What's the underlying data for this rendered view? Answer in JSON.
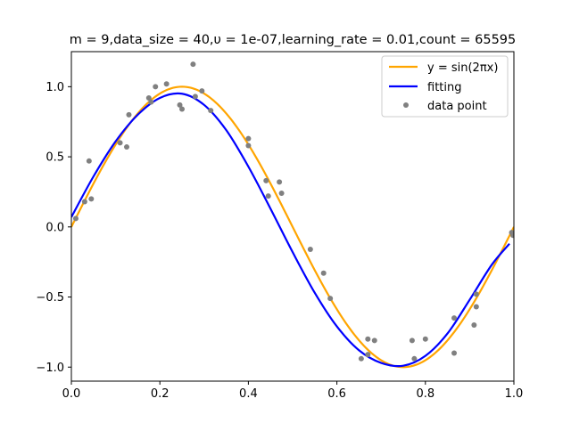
{
  "chart_data": {
    "type": "scatter",
    "title": "m = 9,data_size = 40,υ = 1e-07,learning_rate = 0.01,count = 65595",
    "xlabel": "",
    "ylabel": "",
    "xlim": [
      0.0,
      1.0
    ],
    "ylim": [
      -1.1,
      1.25
    ],
    "x_ticks": [
      0.0,
      0.2,
      0.4,
      0.6,
      0.8,
      1.0
    ],
    "x_tick_labels": [
      "0.0",
      "0.2",
      "0.4",
      "0.6",
      "0.8",
      "1.0"
    ],
    "y_ticks": [
      -1.0,
      -0.5,
      0.0,
      0.5,
      1.0
    ],
    "y_tick_labels": [
      "−1.0",
      "−0.5",
      "0.0",
      "0.5",
      "1.0"
    ],
    "grid": false,
    "legend_position": "upper right",
    "series": [
      {
        "name": "y = sin(2πx)",
        "kind": "line",
        "color": "#ffa500",
        "function": "sin(2*pi*x)",
        "x_range": [
          0.0,
          1.0
        ]
      },
      {
        "name": "fitting",
        "kind": "line",
        "color": "#0000ff",
        "points": [
          [
            0.0,
            0.07
          ],
          [
            0.05,
            0.36
          ],
          [
            0.1,
            0.61
          ],
          [
            0.15,
            0.8
          ],
          [
            0.2,
            0.92
          ],
          [
            0.25,
            0.95
          ],
          [
            0.3,
            0.87
          ],
          [
            0.35,
            0.69
          ],
          [
            0.4,
            0.43
          ],
          [
            0.45,
            0.13
          ],
          [
            0.5,
            -0.18
          ],
          [
            0.55,
            -0.47
          ],
          [
            0.6,
            -0.71
          ],
          [
            0.65,
            -0.88
          ],
          [
            0.7,
            -0.97
          ],
          [
            0.75,
            -0.99
          ],
          [
            0.8,
            -0.92
          ],
          [
            0.85,
            -0.76
          ],
          [
            0.9,
            -0.52
          ],
          [
            0.95,
            -0.27
          ],
          [
            0.99,
            -0.12
          ]
        ]
      },
      {
        "name": "data point",
        "kind": "scatter",
        "color": "#808080",
        "points": [
          [
            0.01,
            0.06
          ],
          [
            0.03,
            0.18
          ],
          [
            0.04,
            0.47
          ],
          [
            0.045,
            0.2
          ],
          [
            0.11,
            0.6
          ],
          [
            0.125,
            0.57
          ],
          [
            0.13,
            0.8
          ],
          [
            0.175,
            0.92
          ],
          [
            0.18,
            0.89
          ],
          [
            0.19,
            1.0
          ],
          [
            0.215,
            1.02
          ],
          [
            0.245,
            0.87
          ],
          [
            0.25,
            0.84
          ],
          [
            0.275,
            1.16
          ],
          [
            0.28,
            0.93
          ],
          [
            0.295,
            0.97
          ],
          [
            0.315,
            0.83
          ],
          [
            0.4,
            0.63
          ],
          [
            0.4,
            0.58
          ],
          [
            0.44,
            0.33
          ],
          [
            0.445,
            0.22
          ],
          [
            0.47,
            0.32
          ],
          [
            0.475,
            0.24
          ],
          [
            0.54,
            -0.16
          ],
          [
            0.57,
            -0.33
          ],
          [
            0.585,
            -0.51
          ],
          [
            0.655,
            -0.94
          ],
          [
            0.67,
            -0.8
          ],
          [
            0.67,
            -0.91
          ],
          [
            0.685,
            -0.81
          ],
          [
            0.77,
            -0.81
          ],
          [
            0.775,
            -0.94
          ],
          [
            0.8,
            -0.8
          ],
          [
            0.865,
            -0.65
          ],
          [
            0.865,
            -0.9
          ],
          [
            0.91,
            -0.7
          ],
          [
            0.915,
            -0.57
          ],
          [
            0.915,
            -0.48
          ],
          [
            0.995,
            -0.04
          ],
          [
            0.998,
            -0.06
          ]
        ]
      }
    ]
  }
}
